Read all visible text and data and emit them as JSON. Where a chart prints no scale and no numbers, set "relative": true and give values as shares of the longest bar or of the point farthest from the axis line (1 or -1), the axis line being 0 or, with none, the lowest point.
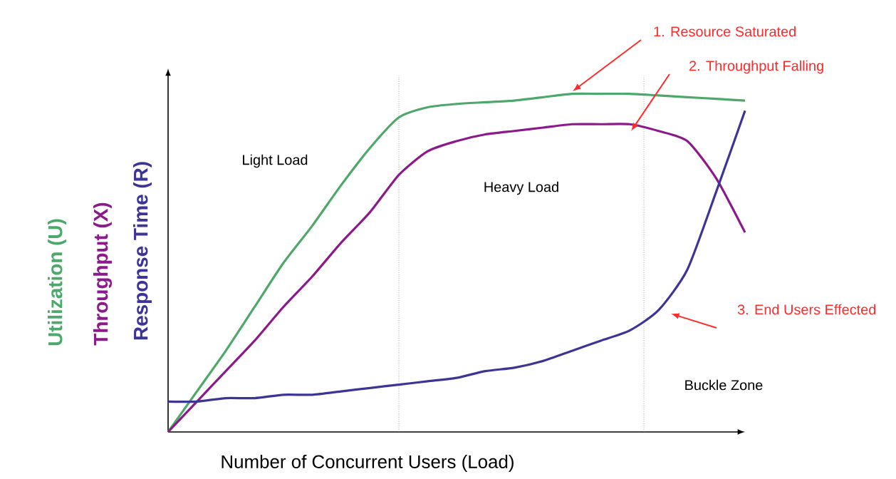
{
  "chart_data": {
    "type": "line",
    "relative": true,
    "xlabel": "Number of  Concurrent Users (Load)",
    "categories": [
      null,
      null,
      null,
      null,
      null,
      null,
      null,
      null,
      null,
      null,
      null,
      null,
      null,
      null,
      null,
      null,
      null,
      null,
      null,
      null,
      null
    ],
    "series": [
      {
        "name": "Utilization (U)",
        "color": "#4ea86b",
        "values": [
          0,
          0.12,
          0.24,
          0.37,
          0.5,
          0.61,
          0.73,
          0.84,
          0.93,
          0.96,
          0.97,
          0.975,
          0.98,
          0.99,
          1.0,
          1.0,
          1.0,
          0.995,
          0.99,
          0.985,
          0.98
        ]
      },
      {
        "name": "Throughput (X)",
        "color": "#8b1a8b",
        "values": [
          0,
          0.09,
          0.18,
          0.27,
          0.37,
          0.46,
          0.56,
          0.65,
          0.76,
          0.83,
          0.86,
          0.88,
          0.89,
          0.9,
          0.91,
          0.91,
          0.91,
          0.89,
          0.86,
          0.75,
          0.59
        ]
      },
      {
        "name": "Response Time (R)",
        "color": "#3c3596",
        "values": [
          0.09,
          0.09,
          0.1,
          0.1,
          0.11,
          0.11,
          0.12,
          0.13,
          0.14,
          0.15,
          0.16,
          0.18,
          0.19,
          0.21,
          0.24,
          0.27,
          0.3,
          0.36,
          0.48,
          0.71,
          0.95
        ]
      }
    ],
    "annotations": [
      "1. Resource Saturated",
      "2. Throughput Falling",
      "3. End Users Effected",
      "Light Load",
      "Heavy Load",
      "Buckle Zone"
    ]
  }
}
